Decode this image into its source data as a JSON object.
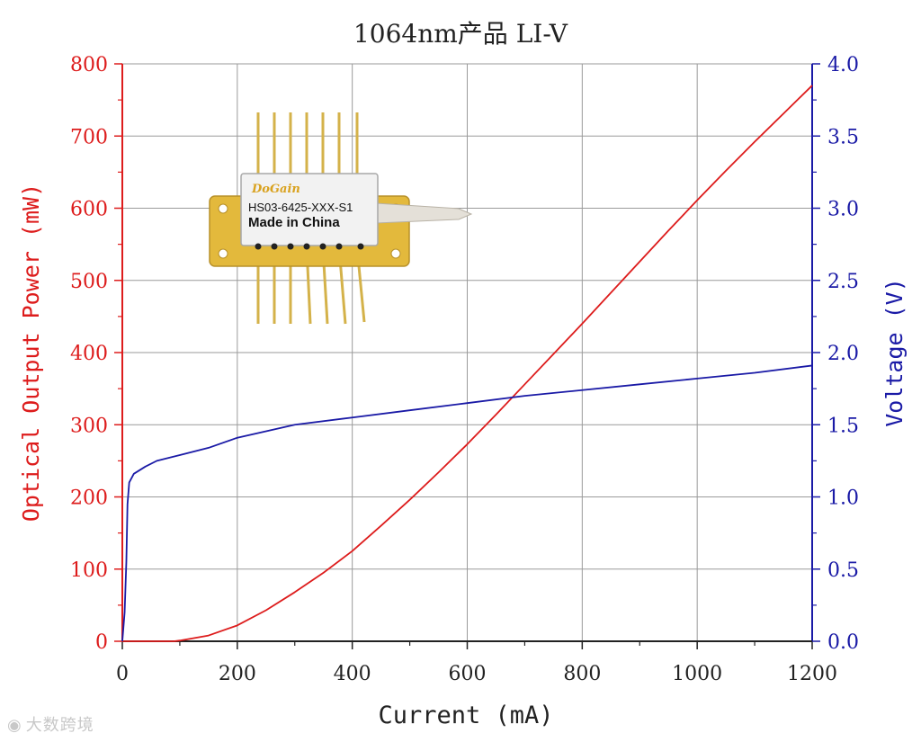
{
  "chart_data": {
    "type": "line",
    "title": "1064nm产品 LI-V",
    "xlabel": "Current (mA)",
    "ylabel_left": "Optical Output Power (mW)",
    "ylabel_right": "Voltage (V)",
    "xlim": [
      0,
      1200
    ],
    "ylim_left": [
      0,
      800
    ],
    "ylim_right": [
      0,
      4.0
    ],
    "x_ticks": [
      "0",
      "200",
      "400",
      "600",
      "800",
      "1000",
      "1200"
    ],
    "y_left_ticks": [
      "0",
      "100",
      "200",
      "300",
      "400",
      "500",
      "600",
      "700",
      "800"
    ],
    "y_right_ticks": [
      "0.0",
      "0.5",
      "1.0",
      "1.5",
      "2.0",
      "2.5",
      "3.0",
      "3.5",
      "4.0"
    ],
    "grid": true,
    "colors": {
      "power": "#dd1c1c",
      "voltage": "#1a1aa6",
      "grid": "#9a9a9a",
      "axis_left": "#dd1c1c",
      "axis_right": "#1a1aa6"
    },
    "series": [
      {
        "axis": "left",
        "color": "#dd1c1c",
        "x": [
          0,
          90,
          100,
          150,
          200,
          250,
          300,
          350,
          400,
          450,
          500,
          550,
          600,
          650,
          700,
          750,
          800,
          850,
          900,
          950,
          1000,
          1050,
          1100,
          1150,
          1200
        ],
        "values": [
          0,
          0,
          1,
          8,
          22,
          43,
          68,
          95,
          125,
          160,
          196,
          234,
          273,
          314,
          356,
          398,
          440,
          483,
          526,
          569,
          611,
          652,
          692,
          731,
          770
        ]
      },
      {
        "axis": "right",
        "color": "#1a1aa6",
        "x": [
          0,
          4,
          7,
          9,
          12,
          20,
          40,
          60,
          100,
          150,
          200,
          300,
          400,
          500,
          600,
          700,
          800,
          900,
          1000,
          1100,
          1200
        ],
        "values": [
          0,
          0.2,
          0.55,
          0.95,
          1.1,
          1.16,
          1.21,
          1.25,
          1.29,
          1.34,
          1.41,
          1.5,
          1.55,
          1.6,
          1.65,
          1.7,
          1.74,
          1.78,
          1.82,
          1.86,
          1.91
        ]
      }
    ]
  },
  "product_image": {
    "brand": "DoGain",
    "model": "HS03-6425-XXX-S1",
    "origin": "Made in China"
  },
  "watermark": {
    "icon": "weibo-icon",
    "text": "大数跨境"
  }
}
